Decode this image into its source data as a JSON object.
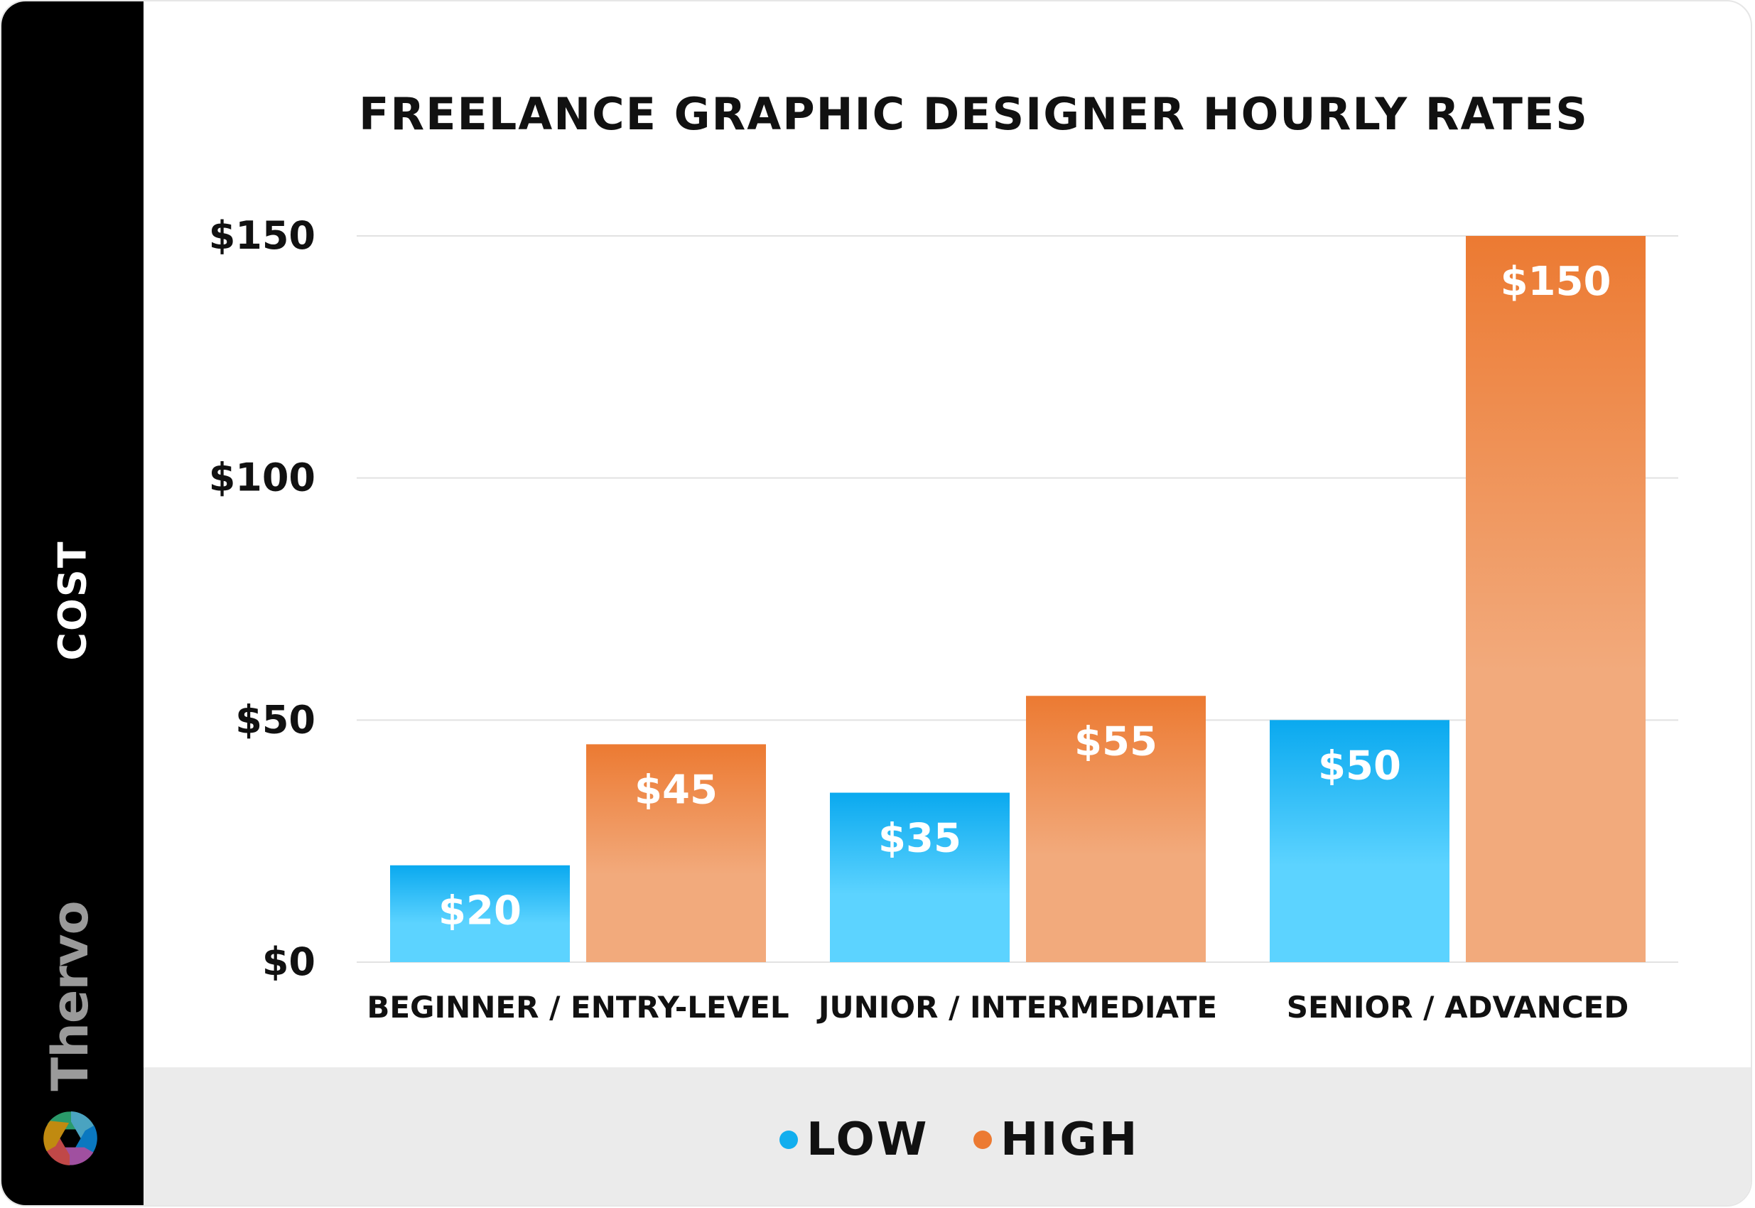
{
  "chart_data": {
    "type": "bar",
    "title": "FREELANCE GRAPHIC DESIGNER HOURLY RATES",
    "ylabel": "COST",
    "xlabel": "",
    "categories": [
      "BEGINNER / ENTRY-LEVEL",
      "JUNIOR / INTERMEDIATE",
      "SENIOR / ADVANCED"
    ],
    "series": [
      {
        "name": "LOW",
        "values": [
          20,
          35,
          50
        ],
        "labels": [
          "$20",
          "$35",
          "$50"
        ],
        "color": "#12aeee"
      },
      {
        "name": "HIGH",
        "values": [
          45,
          55,
          150
        ],
        "labels": [
          "$45",
          "$55",
          "$150"
        ],
        "color": "#ec7a32"
      }
    ],
    "ylim": [
      0,
      150
    ],
    "yticks": [
      0,
      50,
      100,
      150
    ],
    "ytick_labels": [
      "$0",
      "$50",
      "$100",
      "$150"
    ],
    "grid": true,
    "legend": "bottom"
  },
  "brand": {
    "name": "Thervo"
  }
}
